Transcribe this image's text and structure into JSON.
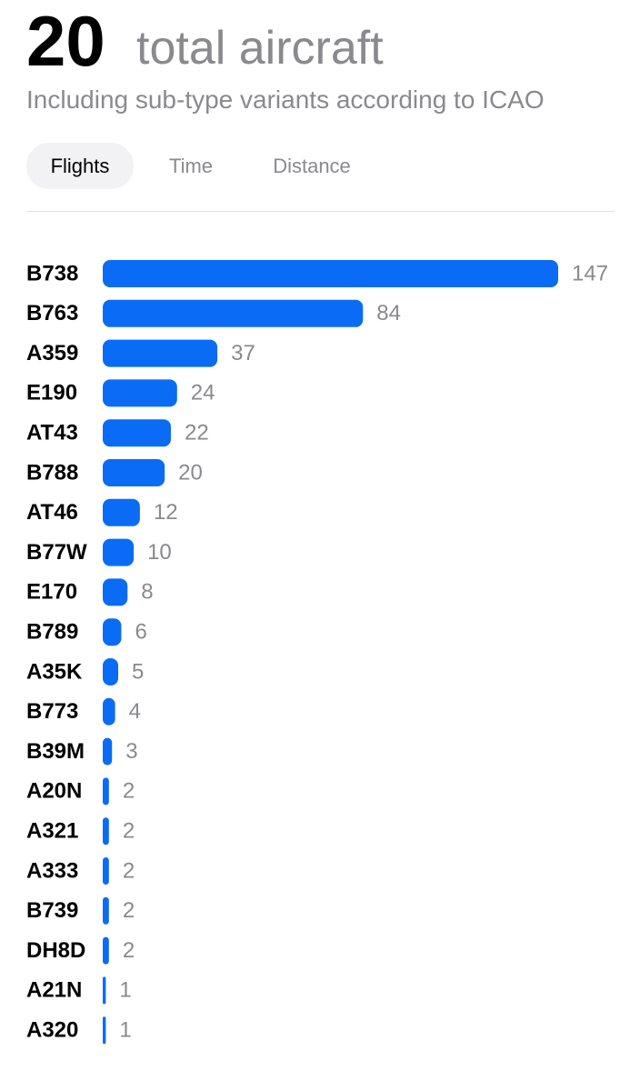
{
  "header": {
    "count": 20,
    "title": "total aircraft",
    "subtitle": "Including sub-type variants according to ICAO"
  },
  "tabs": [
    "Flights",
    "Time",
    "Distance"
  ],
  "chart_data": {
    "type": "bar",
    "orientation": "horizontal",
    "categories": [
      "B738",
      "B763",
      "A359",
      "E190",
      "AT43",
      "B788",
      "AT46",
      "B77W",
      "E170",
      "B789",
      "A35K",
      "B773",
      "B39M",
      "A20N",
      "A321",
      "A333",
      "B739",
      "DH8D",
      "A21N",
      "A320"
    ],
    "values": [
      147,
      84,
      37,
      24,
      22,
      20,
      12,
      10,
      8,
      6,
      5,
      4,
      3,
      2,
      2,
      2,
      2,
      2,
      1,
      1
    ],
    "color": "#0a6cf5"
  }
}
